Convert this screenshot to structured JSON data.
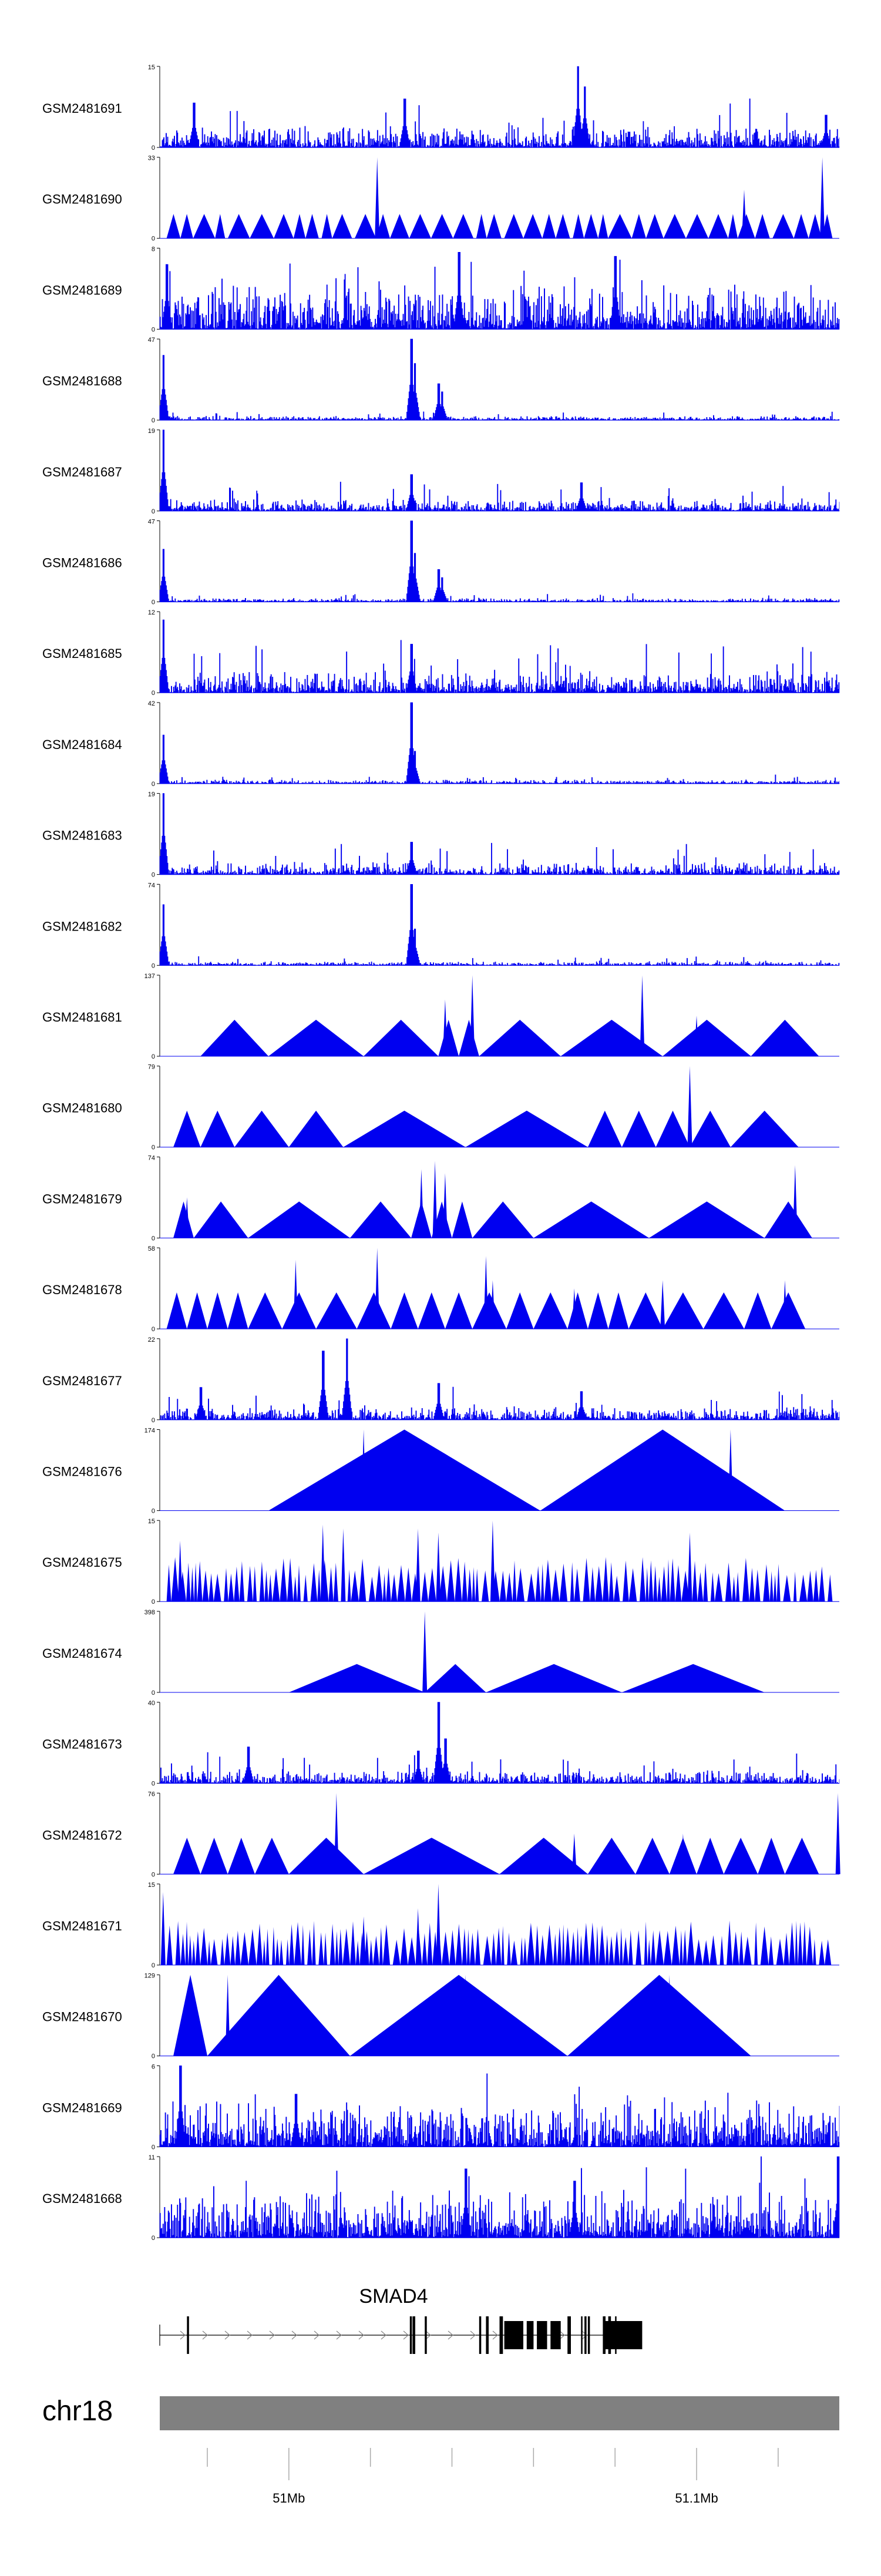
{
  "chart_data": {
    "type": "genome-tracks",
    "tracks": [
      {
        "name": "GSM2481691",
        "ymax": "15",
        "ymin": "0",
        "style": "noise",
        "peaks": [
          [
            0.36,
            0.6
          ],
          [
            0.615,
            1.0
          ],
          [
            0.625,
            0.75
          ],
          [
            0.05,
            0.55
          ],
          [
            0.98,
            0.4
          ]
        ]
      },
      {
        "name": "GSM2481690",
        "ymax": "33",
        "ymin": "0",
        "style": "wide-triangles",
        "peaks": [
          [
            0.32,
            1.0
          ],
          [
            0.86,
            0.6
          ],
          [
            0.975,
            1.0
          ]
        ]
      },
      {
        "name": "GSM2481689",
        "ymax": "8",
        "ymin": "0",
        "style": "dense",
        "peaks": [
          [
            0.01,
            0.8
          ],
          [
            0.44,
            0.95
          ],
          [
            0.67,
            0.9
          ]
        ]
      },
      {
        "name": "GSM2481688",
        "ymax": "47",
        "ymin": "0",
        "style": "sparse",
        "peaks": [
          [
            0.005,
            0.8
          ],
          [
            0.37,
            1.0
          ],
          [
            0.375,
            0.7
          ],
          [
            0.41,
            0.45
          ],
          [
            0.415,
            0.35
          ]
        ]
      },
      {
        "name": "GSM2481687",
        "ymax": "19",
        "ymin": "0",
        "style": "sparse-noise",
        "peaks": [
          [
            0.005,
            1.0
          ],
          [
            0.37,
            0.45
          ],
          [
            0.62,
            0.35
          ]
        ]
      },
      {
        "name": "GSM2481686",
        "ymax": "47",
        "ymin": "0",
        "style": "sparse",
        "peaks": [
          [
            0.005,
            0.65
          ],
          [
            0.37,
            1.0
          ],
          [
            0.375,
            0.6
          ],
          [
            0.41,
            0.4
          ],
          [
            0.415,
            0.3
          ]
        ]
      },
      {
        "name": "GSM2481685",
        "ymax": "12",
        "ymin": "0",
        "style": "noise",
        "peaks": [
          [
            0.005,
            0.9
          ],
          [
            0.37,
            0.6
          ]
        ]
      },
      {
        "name": "GSM2481684",
        "ymax": "42",
        "ymin": "0",
        "style": "sparse",
        "peaks": [
          [
            0.005,
            0.6
          ],
          [
            0.37,
            1.0
          ],
          [
            0.375,
            0.4
          ]
        ]
      },
      {
        "name": "GSM2481683",
        "ymax": "19",
        "ymin": "0",
        "style": "sparse-noise",
        "peaks": [
          [
            0.005,
            1.0
          ],
          [
            0.37,
            0.4
          ]
        ]
      },
      {
        "name": "GSM2481682",
        "ymax": "74",
        "ymin": "0",
        "style": "sparse",
        "peaks": [
          [
            0.005,
            0.75
          ],
          [
            0.37,
            1.0
          ],
          [
            0.375,
            0.45
          ]
        ]
      },
      {
        "name": "GSM2481681",
        "ymax": "137",
        "ymin": "0",
        "style": "coverage",
        "segments": [
          [
            0.06,
            0.16,
            0.45
          ],
          [
            0.16,
            0.3,
            0.45
          ],
          [
            0.3,
            0.41,
            0.45
          ],
          [
            0.41,
            0.44,
            0.45
          ],
          [
            0.44,
            0.47,
            0.45
          ],
          [
            0.47,
            0.59,
            0.45
          ],
          [
            0.59,
            0.74,
            0.45
          ],
          [
            0.74,
            0.87,
            0.45
          ],
          [
            0.87,
            0.97,
            0.45
          ]
        ],
        "peaks": [
          [
            0.42,
            0.7
          ],
          [
            0.46,
            1.0
          ],
          [
            0.71,
            1.0
          ],
          [
            0.79,
            0.5
          ]
        ]
      },
      {
        "name": "GSM2481680",
        "ymax": "79",
        "ymin": "0",
        "style": "coverage",
        "segments": [
          [
            0.02,
            0.06,
            0.45
          ],
          [
            0.06,
            0.11,
            0.45
          ],
          [
            0.11,
            0.19,
            0.45
          ],
          [
            0.19,
            0.27,
            0.45
          ],
          [
            0.27,
            0.45,
            0.45
          ],
          [
            0.45,
            0.63,
            0.45
          ],
          [
            0.63,
            0.68,
            0.45
          ],
          [
            0.68,
            0.73,
            0.45
          ],
          [
            0.73,
            0.78,
            0.45
          ],
          [
            0.78,
            0.84,
            0.45
          ],
          [
            0.84,
            0.94,
            0.45
          ]
        ],
        "peaks": [
          [
            0.78,
            1.0
          ]
        ]
      },
      {
        "name": "GSM2481679",
        "ymax": "74",
        "ymin": "0",
        "style": "coverage",
        "segments": [
          [
            0.02,
            0.05,
            0.45
          ],
          [
            0.05,
            0.13,
            0.45
          ],
          [
            0.13,
            0.28,
            0.45
          ],
          [
            0.28,
            0.37,
            0.45
          ],
          [
            0.37,
            0.4,
            0.45
          ],
          [
            0.4,
            0.43,
            0.45
          ],
          [
            0.43,
            0.46,
            0.45
          ],
          [
            0.46,
            0.55,
            0.45
          ],
          [
            0.55,
            0.72,
            0.45
          ],
          [
            0.72,
            0.89,
            0.45
          ],
          [
            0.89,
            0.96,
            0.45
          ]
        ],
        "peaks": [
          [
            0.04,
            0.5
          ],
          [
            0.385,
            0.85
          ],
          [
            0.405,
            0.95
          ],
          [
            0.42,
            0.8
          ],
          [
            0.935,
            0.9
          ]
        ]
      },
      {
        "name": "GSM2481678",
        "ymax": "58",
        "ymin": "0",
        "style": "coverage",
        "segments": [
          [
            0.01,
            0.04,
            0.45
          ],
          [
            0.04,
            0.07,
            0.45
          ],
          [
            0.07,
            0.1,
            0.45
          ],
          [
            0.1,
            0.13,
            0.45
          ],
          [
            0.13,
            0.18,
            0.45
          ],
          [
            0.18,
            0.23,
            0.45
          ],
          [
            0.23,
            0.29,
            0.45
          ],
          [
            0.29,
            0.34,
            0.45
          ],
          [
            0.34,
            0.38,
            0.45
          ],
          [
            0.38,
            0.42,
            0.45
          ],
          [
            0.42,
            0.46,
            0.45
          ],
          [
            0.46,
            0.51,
            0.45
          ],
          [
            0.51,
            0.55,
            0.45
          ],
          [
            0.55,
            0.6,
            0.45
          ],
          [
            0.6,
            0.63,
            0.45
          ],
          [
            0.63,
            0.66,
            0.45
          ],
          [
            0.66,
            0.69,
            0.45
          ],
          [
            0.69,
            0.74,
            0.45
          ],
          [
            0.74,
            0.8,
            0.45
          ],
          [
            0.8,
            0.86,
            0.45
          ],
          [
            0.86,
            0.9,
            0.45
          ],
          [
            0.9,
            0.95,
            0.45
          ]
        ],
        "peaks": [
          [
            0.2,
            0.85
          ],
          [
            0.32,
            1.0
          ],
          [
            0.48,
            0.9
          ],
          [
            0.49,
            0.6
          ],
          [
            0.61,
            0.5
          ],
          [
            0.74,
            0.6
          ],
          [
            0.92,
            0.6
          ]
        ]
      },
      {
        "name": "GSM2481677",
        "ymax": "22",
        "ymin": "0",
        "style": "sparse-noise",
        "peaks": [
          [
            0.24,
            0.85
          ],
          [
            0.275,
            1.0
          ],
          [
            0.41,
            0.45
          ],
          [
            0.06,
            0.4
          ],
          [
            0.62,
            0.35
          ]
        ]
      },
      {
        "name": "GSM2481676",
        "ymax": "174",
        "ymin": "0",
        "style": "coverage",
        "segments": [
          [
            0.16,
            0.56,
            1.0
          ],
          [
            0.56,
            0.92,
            1.0
          ]
        ],
        "peaks": [
          [
            0.3,
            1.0
          ],
          [
            0.84,
            1.0
          ]
        ]
      },
      {
        "name": "GSM2481675",
        "ymax": "15",
        "ymin": "0",
        "style": "triangles-dense",
        "peaks": [
          [
            0.03,
            0.75
          ],
          [
            0.24,
            0.95
          ],
          [
            0.27,
            0.9
          ],
          [
            0.38,
            0.9
          ],
          [
            0.41,
            0.85
          ],
          [
            0.49,
            1.0
          ],
          [
            0.78,
            0.85
          ]
        ]
      },
      {
        "name": "GSM2481674",
        "ymax": "398",
        "ymin": "0",
        "style": "coverage",
        "segments": [
          [
            0.19,
            0.39,
            0.35
          ],
          [
            0.39,
            0.48,
            0.35
          ],
          [
            0.48,
            0.68,
            0.35
          ],
          [
            0.68,
            0.89,
            0.35
          ]
        ],
        "peaks": [
          [
            0.39,
            1.0
          ]
        ]
      },
      {
        "name": "GSM2481673",
        "ymax": "40",
        "ymin": "0",
        "style": "sparse-noise",
        "peaks": [
          [
            0.13,
            0.45
          ],
          [
            0.38,
            0.4
          ],
          [
            0.41,
            1.0
          ],
          [
            0.42,
            0.55
          ]
        ]
      },
      {
        "name": "GSM2481672",
        "ymax": "76",
        "ymin": "0",
        "style": "coverage",
        "segments": [
          [
            0.02,
            0.06,
            0.45
          ],
          [
            0.06,
            0.1,
            0.45
          ],
          [
            0.1,
            0.14,
            0.45
          ],
          [
            0.14,
            0.19,
            0.45
          ],
          [
            0.19,
            0.3,
            0.45
          ],
          [
            0.3,
            0.5,
            0.45
          ],
          [
            0.5,
            0.63,
            0.45
          ],
          [
            0.63,
            0.7,
            0.45
          ],
          [
            0.7,
            0.75,
            0.45
          ],
          [
            0.75,
            0.79,
            0.45
          ],
          [
            0.79,
            0.83,
            0.45
          ],
          [
            0.83,
            0.88,
            0.45
          ],
          [
            0.88,
            0.92,
            0.45
          ],
          [
            0.92,
            0.97,
            0.45
          ]
        ],
        "peaks": [
          [
            0.26,
            1.0
          ],
          [
            0.61,
            0.5
          ],
          [
            0.77,
            0.5
          ],
          [
            0.998,
            1.0
          ]
        ]
      },
      {
        "name": "GSM2481671",
        "ymax": "15",
        "ymin": "0",
        "style": "triangles-dense",
        "peaks": [
          [
            0.005,
            0.9
          ],
          [
            0.41,
            1.0
          ],
          [
            0.38,
            0.7
          ],
          [
            0.3,
            0.6
          ]
        ]
      },
      {
        "name": "GSM2481670",
        "ymax": "129",
        "ymin": "0",
        "style": "coverage",
        "segments": [
          [
            0.02,
            0.07,
            1.0
          ],
          [
            0.07,
            0.28,
            1.0
          ],
          [
            0.28,
            0.6,
            1.0
          ],
          [
            0.6,
            0.87,
            1.0
          ]
        ],
        "peaks": [
          [
            0.045,
            1.0
          ],
          [
            0.1,
            1.0
          ],
          [
            0.45,
            1.0
          ],
          [
            0.75,
            1.0
          ]
        ]
      },
      {
        "name": "GSM2481669",
        "ymax": "6",
        "ymin": "0",
        "style": "dense",
        "peaks": [
          [
            0.03,
            1.0
          ],
          [
            0.2,
            0.65
          ]
        ]
      },
      {
        "name": "GSM2481668",
        "ymax": "11",
        "ymin": "0",
        "style": "dense",
        "peaks": [
          [
            0.45,
            0.85
          ],
          [
            0.61,
            0.7
          ],
          [
            0.998,
            1.0
          ]
        ]
      }
    ],
    "gene": {
      "name": "SMAD4",
      "start": 0.0,
      "end": 0.7,
      "exons": [
        [
          0.04,
          0.043
        ],
        [
          0.368,
          0.371
        ],
        [
          0.372,
          0.376
        ],
        [
          0.39,
          0.393
        ],
        [
          0.47,
          0.473
        ],
        [
          0.48,
          0.484
        ],
        [
          0.5,
          0.505
        ],
        [
          0.507,
          0.535
        ],
        [
          0.54,
          0.55
        ],
        [
          0.555,
          0.57
        ],
        [
          0.575,
          0.59
        ],
        [
          0.6,
          0.605
        ],
        [
          0.62,
          0.622
        ],
        [
          0.625,
          0.628
        ],
        [
          0.63,
          0.633
        ],
        [
          0.652,
          0.656
        ],
        [
          0.66,
          0.664
        ],
        [
          0.67,
          0.67
        ],
        [
          0.655,
          0.71
        ]
      ]
    },
    "chromosome": {
      "name": "chr18",
      "ticks": [
        {
          "pos": 0.19,
          "label": "51Mb"
        },
        {
          "pos": 0.79,
          "label": "51.1Mb"
        }
      ],
      "minor_ticks": [
        0.07,
        0.31,
        0.43,
        0.55,
        0.67,
        0.91
      ]
    },
    "colors": {
      "signal": "#0000f0",
      "gene": "#000000",
      "ideogram": "#808080"
    }
  }
}
